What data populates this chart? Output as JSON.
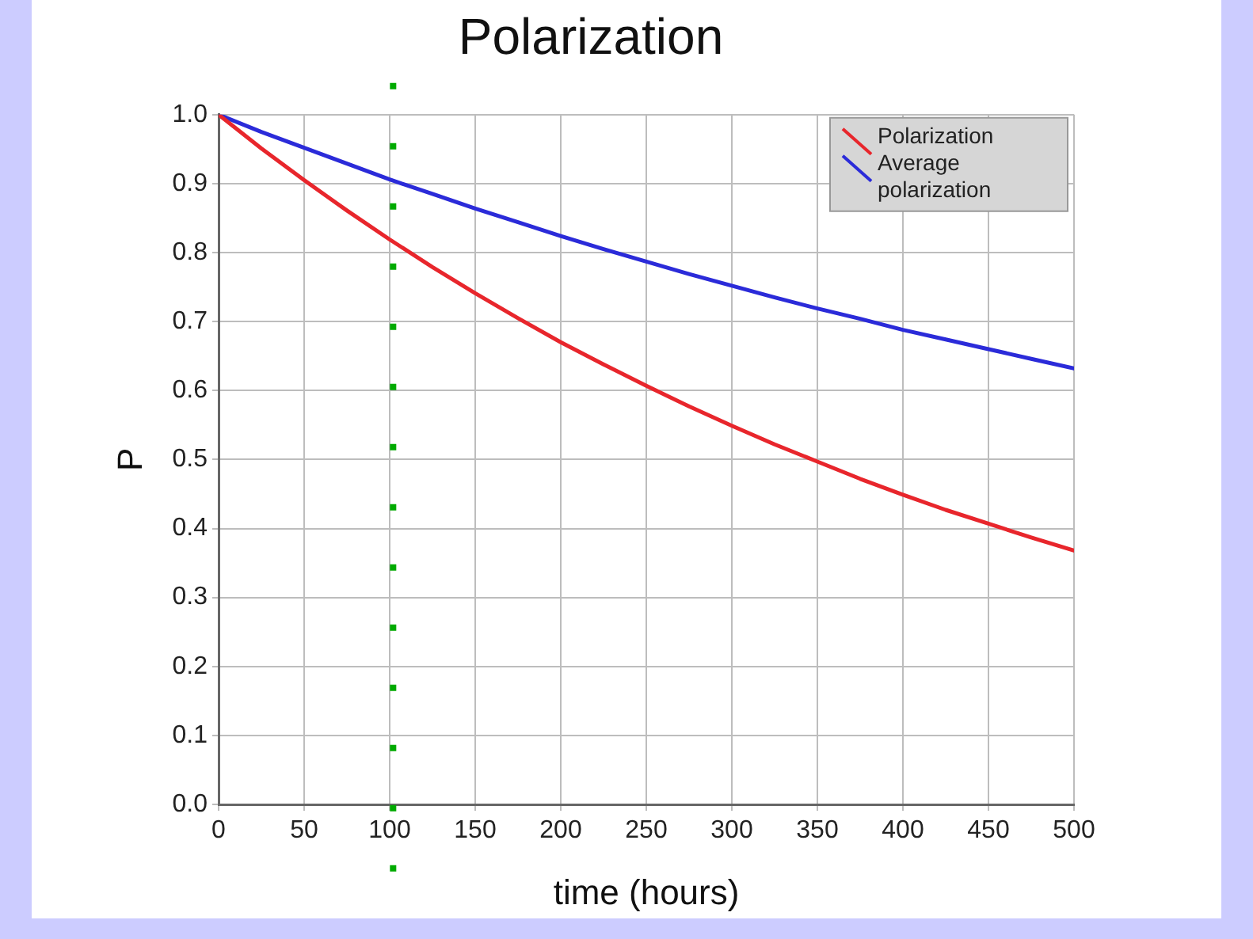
{
  "chart_data": {
    "type": "line",
    "title": "Polarization",
    "xlabel": "time (hours)",
    "ylabel": "P",
    "x": [
      0,
      25,
      50,
      75,
      100,
      125,
      150,
      175,
      200,
      225,
      250,
      275,
      300,
      325,
      350,
      375,
      400,
      425,
      450,
      475,
      500
    ],
    "series": [
      {
        "name": "Polarization",
        "color": "#e8262c",
        "values": [
          1,
          0.951,
          0.905,
          0.861,
          0.819,
          0.779,
          0.741,
          0.705,
          0.67,
          0.638,
          0.607,
          0.577,
          0.549,
          0.522,
          0.497,
          0.472,
          0.449,
          0.427,
          0.407,
          0.387,
          0.368
        ]
      },
      {
        "name": "Average polarization",
        "color": "#2b2bd9",
        "values": [
          1,
          0.975,
          0.952,
          0.929,
          0.906,
          0.885,
          0.864,
          0.844,
          0.824,
          0.805,
          0.787,
          0.769,
          0.752,
          0.735,
          0.719,
          0.704,
          0.688,
          0.674,
          0.66,
          0.646,
          0.632
        ]
      }
    ],
    "xlim": [
      0,
      500
    ],
    "xticks": [
      0,
      50,
      100,
      150,
      200,
      250,
      300,
      350,
      400,
      450,
      500
    ],
    "ylim": [
      0,
      1
    ],
    "yticks": [
      {
        "value": 0,
        "label": "0.0"
      },
      0.1,
      0.2,
      0.3,
      0.4,
      0.5,
      0.6,
      0.7,
      0.8,
      0.9,
      {
        "value": 1,
        "label": "1.0"
      }
    ],
    "ref_lines": [
      {
        "axis": "x",
        "value": 102,
        "color": "#00aa00",
        "line_style": "dotted"
      }
    ],
    "grid": true,
    "legend": "top right",
    "marker": "none",
    "line_style": "solid"
  }
}
